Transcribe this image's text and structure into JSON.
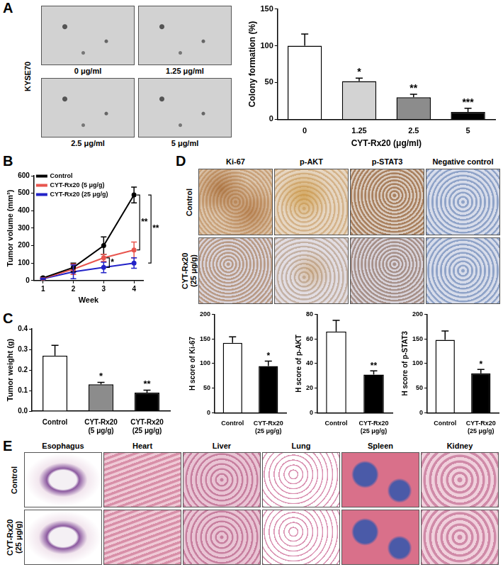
{
  "figure": {
    "panels": [
      "A",
      "B",
      "C",
      "D",
      "E"
    ],
    "A_images": {
      "row_label": "KYSE70",
      "labels": [
        "0 μg/ml",
        "1.25 μg/ml",
        "2.5 μg/ml",
        "5 μg/ml"
      ]
    },
    "D_images": {
      "columns": [
        "Ki-67",
        "p-AKT",
        "p-STAT3",
        "Negative control"
      ],
      "rows": [
        "Control",
        "CYT-Rx20\n(25 μg/g)"
      ]
    },
    "E_images": {
      "columns": [
        "Esophagus",
        "Heart",
        "Liver",
        "Lung",
        "Spleen",
        "Kidney"
      ],
      "rows": [
        "Control",
        "CYT-Rx20\n(25 μg/g)"
      ]
    }
  },
  "chart_data": [
    {
      "type": "bar",
      "ylabel": "Colony formation (%)",
      "xlabel": "CYT-Rx20 (μg/ml)",
      "categories": [
        "0",
        "1.25",
        "2.5",
        "5"
      ],
      "values": [
        100,
        52,
        30,
        10
      ],
      "errors": [
        16,
        4,
        4,
        5
      ],
      "annotations": [
        null,
        "*",
        "**",
        "***"
      ],
      "colors": [
        "#ffffff",
        "#d3d3d3",
        "#8c8c8c",
        "#000000"
      ],
      "ylim": [
        0,
        150
      ],
      "yticks": [
        0,
        50,
        100,
        150
      ],
      "grid": false
    },
    {
      "type": "line",
      "ylabel": "Tumor volume (mm³)",
      "xlabel": "Week",
      "x": [
        1,
        2,
        3,
        4
      ],
      "xlim": [
        0.7,
        4.3
      ],
      "xticks": [
        1,
        2,
        3,
        4
      ],
      "ylim": [
        0,
        600
      ],
      "yticks": [
        0,
        100,
        200,
        300,
        400,
        500,
        600
      ],
      "grid": false,
      "legend": "upper left",
      "marker": "circle",
      "series": [
        {
          "name": "Control",
          "color": "#000000",
          "values": [
            15,
            75,
            200,
            490
          ],
          "errors": [
            5,
            25,
            50,
            45
          ]
        },
        {
          "name": "CYT-Rx20 (5 μg/g)",
          "color": "#e8554e",
          "values": [
            12,
            65,
            130,
            175
          ],
          "errors": [
            3,
            30,
            20,
            45
          ]
        },
        {
          "name": "CYT-Rx20 (25 μg/g)",
          "color": "#2323c8",
          "values": [
            10,
            50,
            75,
            100
          ],
          "errors": [
            3,
            40,
            30,
            30
          ]
        }
      ],
      "annotations": [
        {
          "text": "*",
          "x": 3,
          "between": [
            "CYT-Rx20 (5 μg/g)",
            "CYT-Rx20 (25 μg/g)"
          ]
        },
        {
          "text": "**",
          "x": 4,
          "between": [
            "Control",
            "CYT-Rx20 (5 μg/g)"
          ]
        },
        {
          "text": "**",
          "x": 4,
          "between": [
            "Control",
            "CYT-Rx20 (25 μg/g)"
          ]
        }
      ]
    },
    {
      "type": "bar",
      "ylabel": "Tumor weight (g)",
      "categories": [
        "Control",
        "CYT-Rx20\n(5 μg/g)",
        "CYT-Rx20\n(25 μg/g)"
      ],
      "values": [
        0.27,
        0.13,
        0.09
      ],
      "errors": [
        0.05,
        0.01,
        0.012
      ],
      "annotations": [
        null,
        "*",
        "**"
      ],
      "colors": [
        "#ffffff",
        "#8c8c8c",
        "#000000"
      ],
      "ylim": [
        0,
        0.4
      ],
      "yticks": [
        {
          "value": 0,
          "label": "0.0"
        },
        0.1,
        0.2,
        0.3,
        0.4
      ],
      "grid": false
    },
    {
      "type": "bar",
      "ylabel": "H score of Ki-67",
      "categories": [
        "Control",
        "CYT-Rx20\n(25 μg/g)"
      ],
      "values": [
        142,
        95
      ],
      "errors": [
        12,
        10
      ],
      "annotations": [
        null,
        "*"
      ],
      "colors": [
        "#ffffff",
        "#000000"
      ],
      "ylim": [
        0,
        200
      ],
      "yticks": [
        0,
        50,
        100,
        150,
        200
      ],
      "grid": false
    },
    {
      "type": "bar",
      "ylabel": "H score of p-AKT",
      "categories": [
        "Control",
        "CYT-Rx20\n(25 μg/g)"
      ],
      "values": [
        66,
        31
      ],
      "errors": [
        9,
        3
      ],
      "annotations": [
        null,
        "**"
      ],
      "colors": [
        "#ffffff",
        "#000000"
      ],
      "ylim": [
        0,
        80
      ],
      "yticks": [
        0,
        20,
        40,
        60,
        80
      ],
      "grid": false
    },
    {
      "type": "bar",
      "ylabel": "H score of p-STAT3",
      "categories": [
        "Control",
        "CYT-Rx20\n(25 μg/g)"
      ],
      "values": [
        148,
        80
      ],
      "errors": [
        18,
        8
      ],
      "annotations": [
        null,
        "*"
      ],
      "colors": [
        "#ffffff",
        "#000000"
      ],
      "ylim": [
        0,
        200
      ],
      "yticks": [
        0,
        50,
        100,
        150,
        200
      ],
      "grid": false
    }
  ]
}
